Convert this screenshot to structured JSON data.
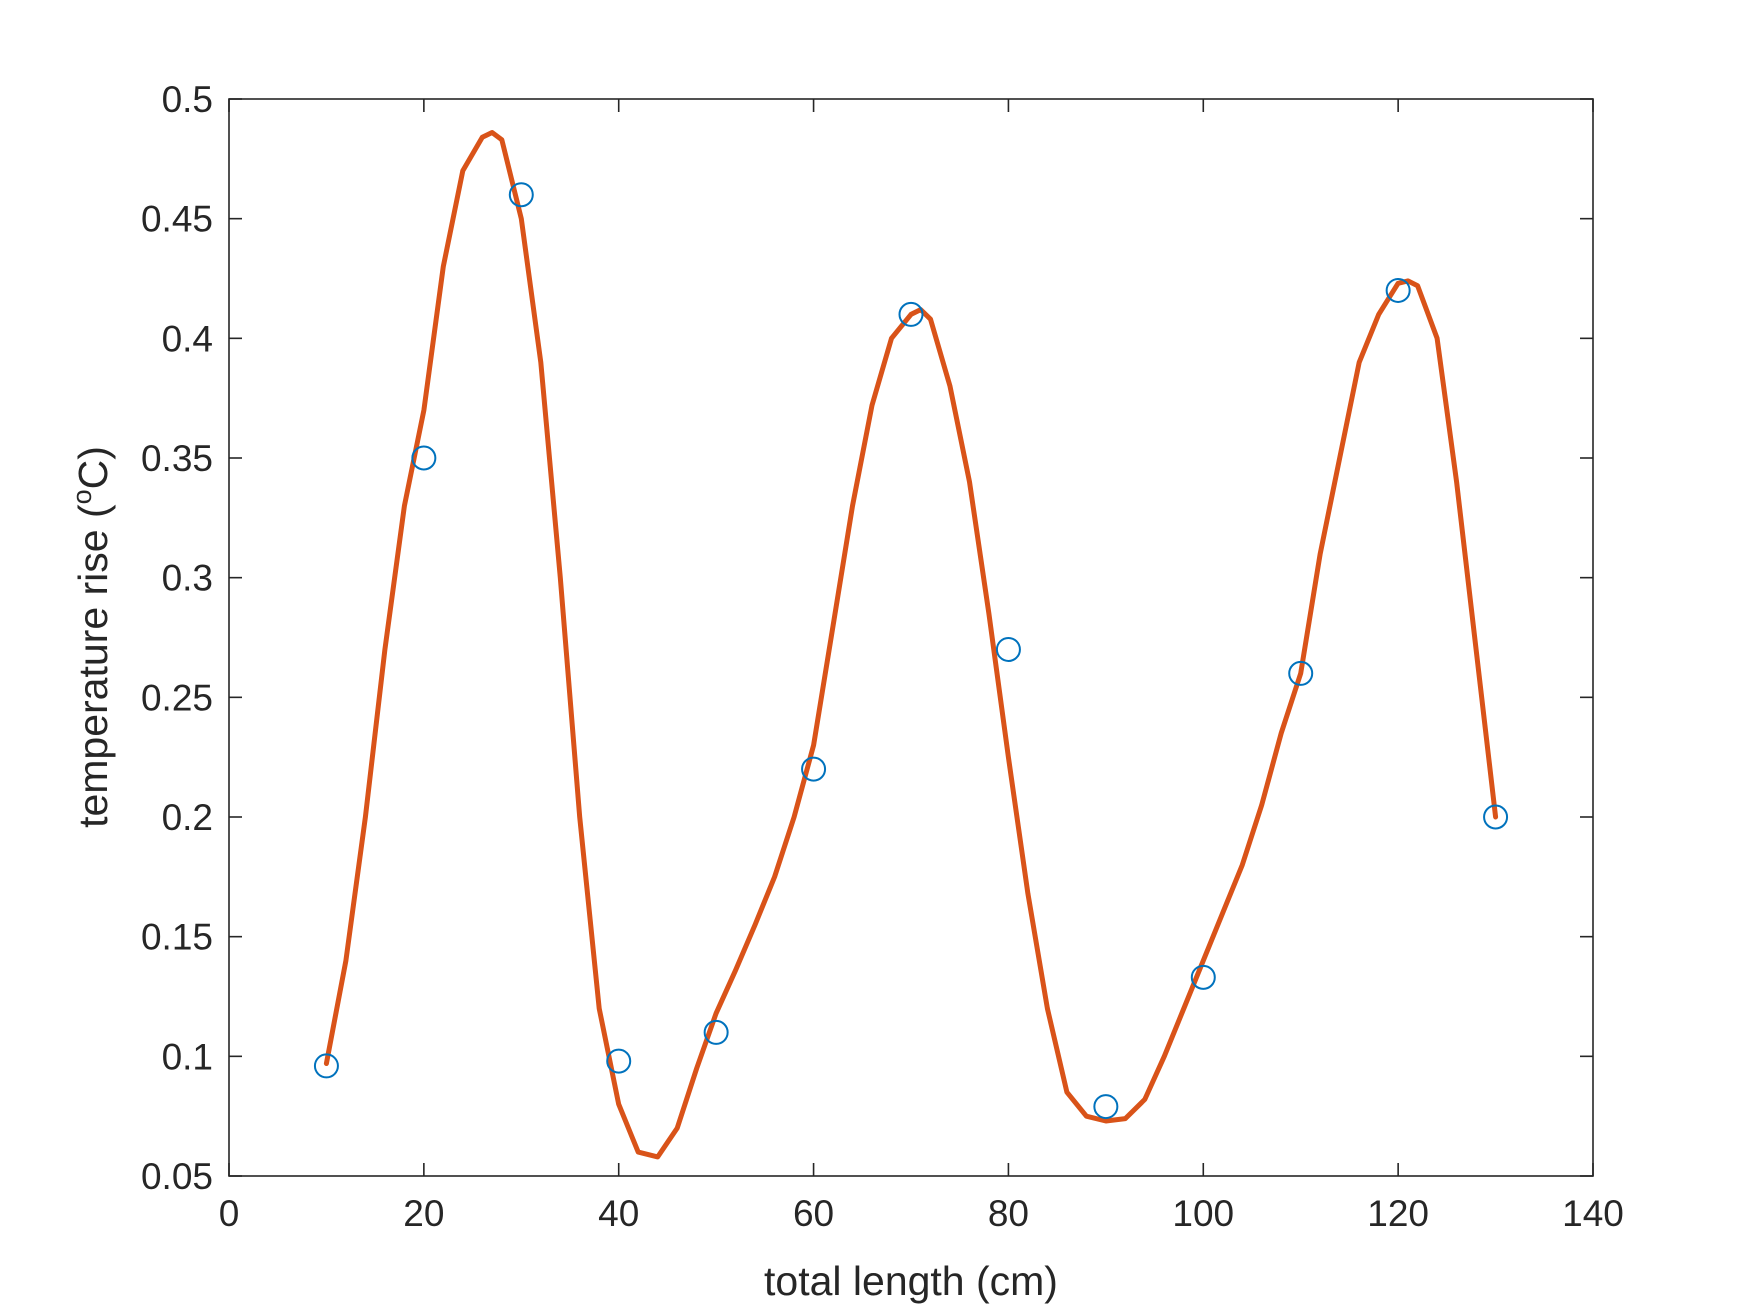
{
  "chart_data": {
    "type": "scatter",
    "title": "",
    "xlabel": "total length (cm)",
    "ylabel_main": "temperature rise (",
    "ylabel_sup": "o",
    "ylabel_unit": "C)",
    "xlim": [
      0,
      140
    ],
    "ylim": [
      0.05,
      0.5
    ],
    "xticks": [
      0,
      20,
      40,
      60,
      80,
      100,
      120,
      140
    ],
    "xtick_labels": [
      "0",
      "20",
      "40",
      "60",
      "80",
      "100",
      "120",
      "140"
    ],
    "yticks": [
      0.05,
      0.1,
      0.15,
      0.2,
      0.25,
      0.3,
      0.35,
      0.4,
      0.45,
      0.5
    ],
    "ytick_labels": [
      "0.05",
      "0.1",
      "0.15",
      "0.2",
      "0.25",
      "0.3",
      "0.35",
      "0.4",
      "0.45",
      "0.5"
    ],
    "grid": false,
    "series": [
      {
        "kind": "markers",
        "marker": "circle",
        "color": "#0072BD",
        "x": [
          10,
          20,
          30,
          40,
          50,
          60,
          70,
          80,
          90,
          100,
          110,
          120,
          130
        ],
        "y": [
          0.096,
          0.35,
          0.46,
          0.098,
          0.11,
          0.22,
          0.41,
          0.27,
          0.079,
          0.133,
          0.26,
          0.42,
          0.2
        ]
      },
      {
        "kind": "line",
        "color": "#D95319",
        "x": [
          10,
          12,
          14,
          16,
          18,
          20,
          22,
          24,
          26,
          27,
          28,
          30,
          32,
          34,
          36,
          38,
          40,
          42,
          44,
          46,
          48,
          50,
          52,
          54,
          56,
          58,
          60,
          62,
          64,
          66,
          68,
          70,
          71,
          72,
          74,
          76,
          78,
          80,
          82,
          84,
          86,
          88,
          90,
          92,
          94,
          96,
          98,
          100,
          102,
          104,
          106,
          108,
          110,
          112,
          114,
          116,
          118,
          120,
          121,
          122,
          124,
          126,
          128,
          130
        ],
        "y": [
          0.097,
          0.14,
          0.2,
          0.27,
          0.33,
          0.37,
          0.43,
          0.47,
          0.484,
          0.486,
          0.483,
          0.45,
          0.39,
          0.3,
          0.2,
          0.12,
          0.08,
          0.06,
          0.058,
          0.07,
          0.095,
          0.118,
          0.136,
          0.155,
          0.175,
          0.2,
          0.23,
          0.28,
          0.33,
          0.372,
          0.4,
          0.41,
          0.412,
          0.408,
          0.38,
          0.34,
          0.285,
          0.225,
          0.168,
          0.12,
          0.085,
          0.075,
          0.073,
          0.074,
          0.082,
          0.1,
          0.12,
          0.14,
          0.16,
          0.18,
          0.205,
          0.235,
          0.26,
          0.31,
          0.35,
          0.39,
          0.41,
          0.423,
          0.424,
          0.422,
          0.4,
          0.34,
          0.27,
          0.2
        ]
      }
    ]
  }
}
